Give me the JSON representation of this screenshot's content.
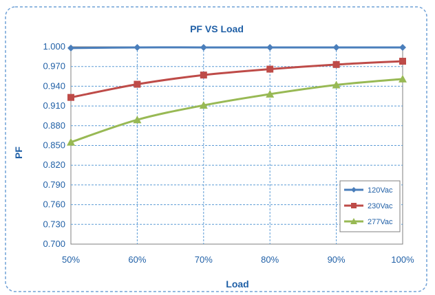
{
  "chart_data": {
    "type": "line",
    "title": "PF VS Load",
    "xlabel": "Load",
    "ylabel": "PF",
    "categories": [
      "50%",
      "60%",
      "70%",
      "80%",
      "90%",
      "100%"
    ],
    "ylim": [
      0.7,
      1.0
    ],
    "yticks": [
      "0.700",
      "0.730",
      "0.760",
      "0.790",
      "0.820",
      "0.850",
      "0.880",
      "0.910",
      "0.940",
      "0.970",
      "1.000"
    ],
    "grid": true,
    "legend_position": "bottom-right",
    "series": [
      {
        "name": "120Vac",
        "values": [
          0.998,
          0.999,
          0.999,
          0.999,
          0.999,
          0.999
        ],
        "color": "#4a7ebb",
        "marker": "diamond"
      },
      {
        "name": "230Vac",
        "values": [
          0.923,
          0.943,
          0.957,
          0.966,
          0.973,
          0.978
        ],
        "color": "#be4b48",
        "marker": "square"
      },
      {
        "name": "277Vac",
        "values": [
          0.855,
          0.889,
          0.911,
          0.928,
          0.942,
          0.951
        ],
        "color": "#98b954",
        "marker": "triangle"
      }
    ],
    "colors": {
      "text": "#1f5fa6",
      "grid": "#5b9bd5",
      "frame": "#6fa0d6"
    }
  }
}
